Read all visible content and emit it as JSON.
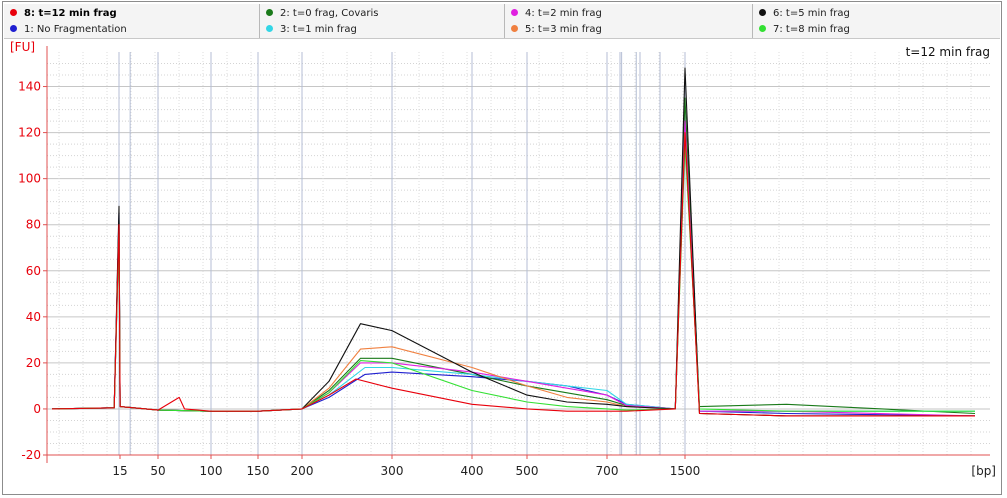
{
  "legend": {
    "columns": [
      [
        {
          "label": "8: t=12 min frag",
          "color": "#e8000b",
          "bold": true
        },
        {
          "label": "1: No Fragmentation",
          "color": "#1f1fd0",
          "bold": false
        }
      ],
      [
        {
          "label": "2: t=0 frag, Covaris",
          "color": "#1a7a1a",
          "bold": false
        },
        {
          "label": "3: t=1 min frag",
          "color": "#33d6e6",
          "bold": false
        }
      ],
      [
        {
          "label": "4: t=2 min frag",
          "color": "#e020e0",
          "bold": false
        },
        {
          "label": "5: t=3 min frag",
          "color": "#f08040",
          "bold": false
        }
      ],
      [
        {
          "label": "6: t=5 min frag",
          "color": "#111111",
          "bold": false
        },
        {
          "label": "7: t=8 min frag",
          "color": "#33e033",
          "bold": false
        }
      ]
    ]
  },
  "chart_data": {
    "type": "line",
    "title": "t=12 min frag",
    "ylabel": "[FU]",
    "xlabel": "[bp]",
    "ylim": [
      -20,
      155
    ],
    "yticks": [
      -20,
      0,
      20,
      40,
      60,
      80,
      100,
      120,
      140
    ],
    "xticks": [
      "15",
      "50",
      "100",
      "150",
      "200",
      "300",
      "400",
      "500",
      "700",
      "1500"
    ],
    "grid": true,
    "series": [
      {
        "name": "1: No Fragmentation",
        "color": "#1f1fd0",
        "points": [
          [
            1,
            0
          ],
          [
            14,
            0.5
          ],
          [
            15,
            85
          ],
          [
            16,
            1
          ],
          [
            50,
            -0.5
          ],
          [
            100,
            -1
          ],
          [
            150,
            -1
          ],
          [
            200,
            0
          ],
          [
            230,
            5
          ],
          [
            270,
            15
          ],
          [
            300,
            16
          ],
          [
            400,
            14
          ],
          [
            500,
            12
          ],
          [
            600,
            10
          ],
          [
            700,
            6
          ],
          [
            900,
            2
          ],
          [
            1400,
            0
          ],
          [
            1500,
            125
          ],
          [
            1600,
            -1
          ],
          [
            2200,
            -2
          ],
          [
            3500,
            -3
          ]
        ]
      },
      {
        "name": "2: t=0 frag, Covaris",
        "color": "#1a7a1a",
        "points": [
          [
            1,
            0
          ],
          [
            14,
            0.5
          ],
          [
            15,
            82
          ],
          [
            16,
            1
          ],
          [
            50,
            -0.5
          ],
          [
            100,
            -1
          ],
          [
            150,
            -1
          ],
          [
            200,
            0
          ],
          [
            230,
            8
          ],
          [
            265,
            22
          ],
          [
            300,
            22
          ],
          [
            400,
            15
          ],
          [
            500,
            10
          ],
          [
            600,
            7
          ],
          [
            700,
            4
          ],
          [
            900,
            1.5
          ],
          [
            1400,
            0
          ],
          [
            1500,
            135
          ],
          [
            1600,
            1
          ],
          [
            2200,
            2
          ],
          [
            3500,
            -2
          ]
        ]
      },
      {
        "name": "3: t=1 min frag",
        "color": "#33d6e6",
        "points": [
          [
            1,
            0
          ],
          [
            14,
            0.5
          ],
          [
            15,
            80
          ],
          [
            16,
            1
          ],
          [
            50,
            -0.5
          ],
          [
            100,
            -1
          ],
          [
            150,
            -1
          ],
          [
            200,
            0
          ],
          [
            230,
            6
          ],
          [
            270,
            18
          ],
          [
            300,
            18
          ],
          [
            400,
            15
          ],
          [
            500,
            12
          ],
          [
            600,
            10
          ],
          [
            700,
            8
          ],
          [
            900,
            2
          ],
          [
            1400,
            0
          ],
          [
            1500,
            120
          ],
          [
            1600,
            -1
          ],
          [
            2200,
            -1
          ],
          [
            3500,
            -1
          ]
        ]
      },
      {
        "name": "4: t=2 min frag",
        "color": "#e020e0",
        "points": [
          [
            1,
            0
          ],
          [
            14,
            0.5
          ],
          [
            15,
            78
          ],
          [
            16,
            1
          ],
          [
            50,
            -0.5
          ],
          [
            100,
            -1
          ],
          [
            150,
            -1
          ],
          [
            200,
            0
          ],
          [
            230,
            7
          ],
          [
            265,
            20
          ],
          [
            300,
            20
          ],
          [
            400,
            16
          ],
          [
            500,
            12
          ],
          [
            600,
            9
          ],
          [
            700,
            6
          ],
          [
            900,
            1.5
          ],
          [
            1400,
            0
          ],
          [
            1500,
            125
          ],
          [
            1600,
            -1
          ],
          [
            2200,
            -1
          ],
          [
            3500,
            -3
          ]
        ]
      },
      {
        "name": "5: t=3 min frag",
        "color": "#f08040",
        "points": [
          [
            1,
            0
          ],
          [
            14,
            0.5
          ],
          [
            15,
            80
          ],
          [
            16,
            1
          ],
          [
            50,
            -0.5
          ],
          [
            100,
            -1
          ],
          [
            150,
            -1
          ],
          [
            200,
            0
          ],
          [
            230,
            9
          ],
          [
            265,
            26
          ],
          [
            300,
            27
          ],
          [
            400,
            18
          ],
          [
            500,
            10
          ],
          [
            600,
            5
          ],
          [
            700,
            3
          ],
          [
            900,
            1
          ],
          [
            1400,
            0
          ],
          [
            1500,
            120
          ],
          [
            1600,
            -2
          ],
          [
            2200,
            -3
          ],
          [
            3500,
            -3
          ]
        ]
      },
      {
        "name": "6: t=5 min frag",
        "color": "#111111",
        "points": [
          [
            1,
            0
          ],
          [
            14,
            0.5
          ],
          [
            15,
            88
          ],
          [
            16,
            1
          ],
          [
            50,
            -0.5
          ],
          [
            100,
            -1
          ],
          [
            150,
            -1
          ],
          [
            200,
            0
          ],
          [
            230,
            12
          ],
          [
            265,
            37
          ],
          [
            300,
            34
          ],
          [
            400,
            16
          ],
          [
            500,
            6
          ],
          [
            600,
            3
          ],
          [
            700,
            2
          ],
          [
            900,
            1
          ],
          [
            1400,
            0
          ],
          [
            1500,
            148
          ],
          [
            1600,
            -2
          ],
          [
            2200,
            -3
          ],
          [
            3500,
            -3
          ]
        ]
      },
      {
        "name": "7: t=8 min frag",
        "color": "#33e033",
        "points": [
          [
            1,
            0
          ],
          [
            14,
            0.5
          ],
          [
            15,
            76
          ],
          [
            16,
            1
          ],
          [
            50,
            -0.5
          ],
          [
            100,
            -1
          ],
          [
            150,
            -1
          ],
          [
            200,
            0
          ],
          [
            230,
            7
          ],
          [
            265,
            21
          ],
          [
            300,
            20
          ],
          [
            400,
            8
          ],
          [
            500,
            3
          ],
          [
            600,
            1
          ],
          [
            700,
            0
          ],
          [
            900,
            -0.5
          ],
          [
            1400,
            0
          ],
          [
            1500,
            115
          ],
          [
            1600,
            0
          ],
          [
            2200,
            -1
          ],
          [
            3500,
            -1
          ]
        ]
      },
      {
        "name": "8: t=12 min frag",
        "color": "#e8000b",
        "points": [
          [
            1,
            0
          ],
          [
            14,
            0.5
          ],
          [
            15,
            80
          ],
          [
            16,
            1
          ],
          [
            50,
            -0.5
          ],
          [
            70,
            5
          ],
          [
            75,
            0
          ],
          [
            100,
            -1
          ],
          [
            150,
            -1
          ],
          [
            200,
            0
          ],
          [
            230,
            6
          ],
          [
            260,
            13
          ],
          [
            300,
            9
          ],
          [
            400,
            2
          ],
          [
            500,
            0
          ],
          [
            600,
            -1
          ],
          [
            700,
            -1
          ],
          [
            900,
            -1
          ],
          [
            1400,
            0
          ],
          [
            1500,
            120
          ],
          [
            1600,
            -2
          ],
          [
            2200,
            -3
          ],
          [
            3500,
            -3
          ]
        ]
      }
    ]
  }
}
